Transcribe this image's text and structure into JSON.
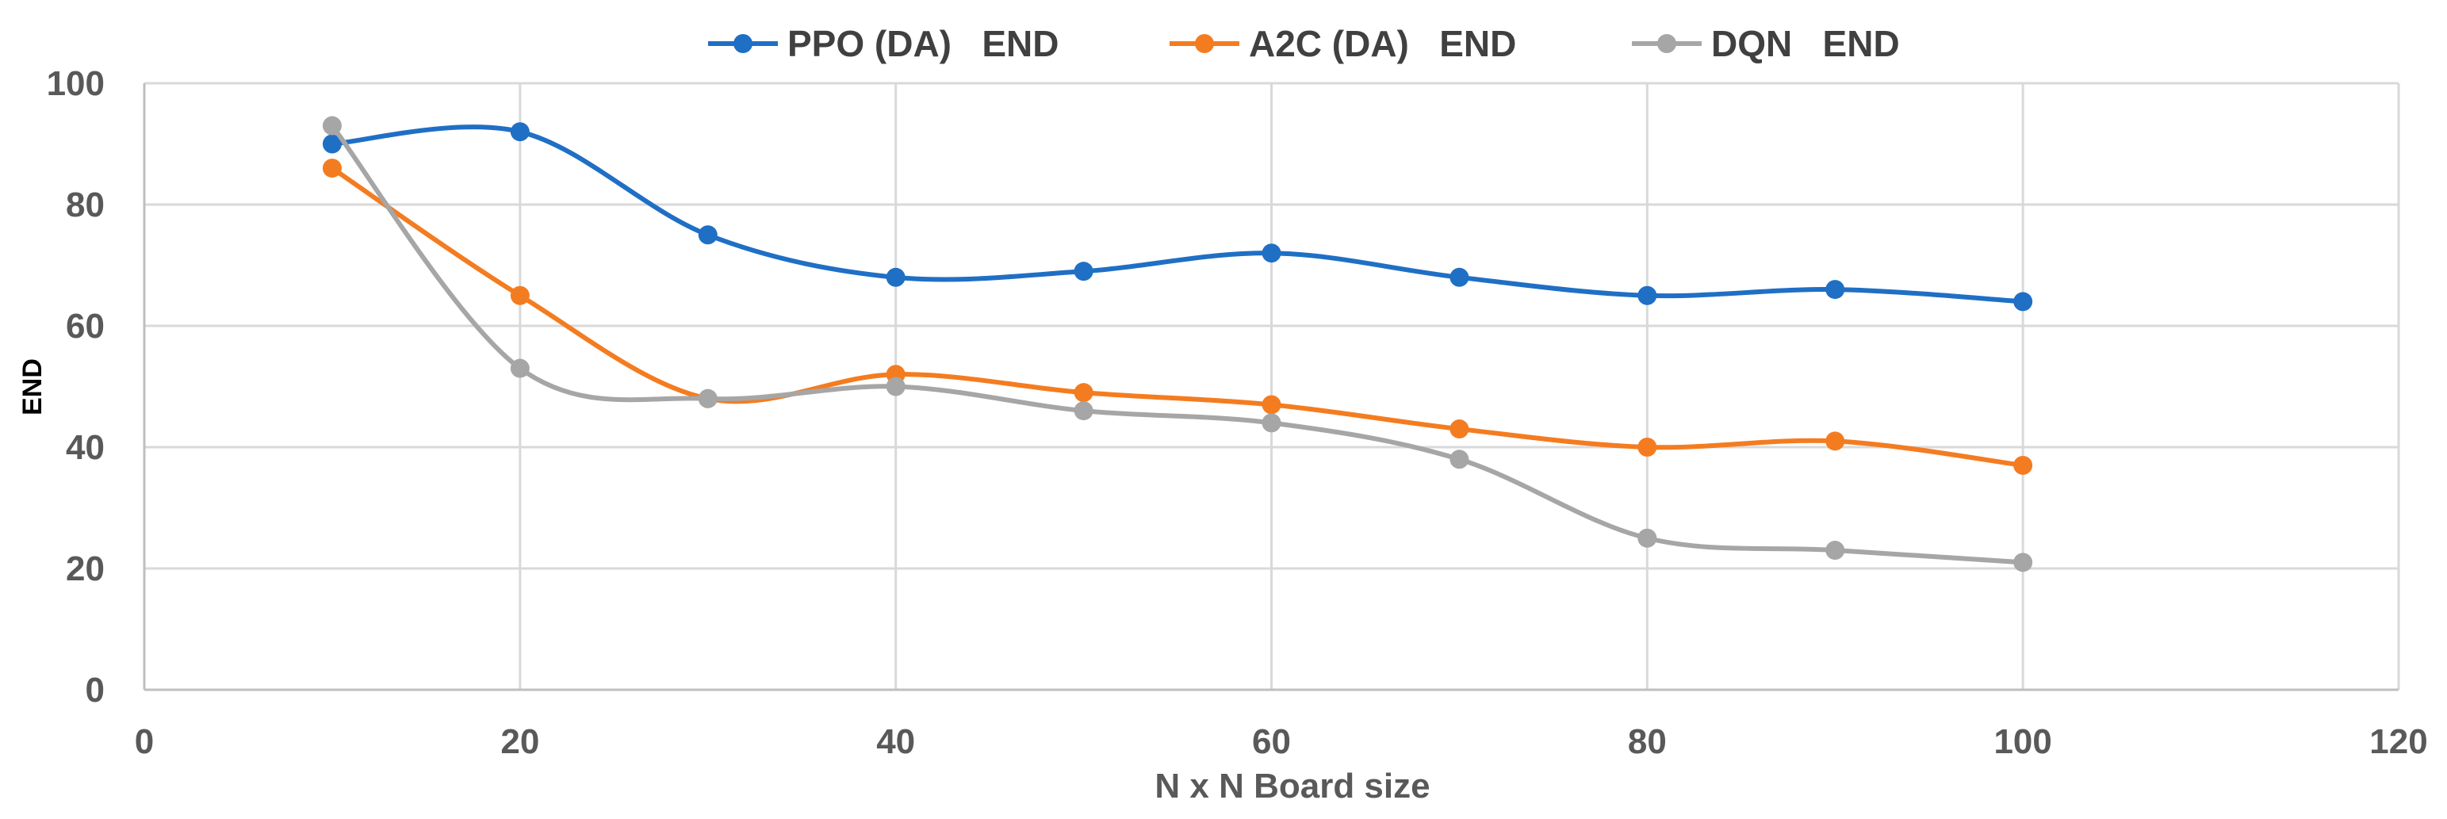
{
  "chart_data": {
    "type": "line",
    "title": "",
    "xlabel": "N x N Board size",
    "ylabel": "END",
    "xlim": [
      0,
      120
    ],
    "ylim": [
      0,
      100
    ],
    "xticks": [
      0,
      20,
      40,
      60,
      80,
      100,
      120
    ],
    "yticks": [
      0,
      20,
      40,
      60,
      80,
      100
    ],
    "grid": true,
    "legend_position": "top",
    "x": [
      10,
      20,
      30,
      40,
      50,
      60,
      70,
      80,
      90,
      100
    ],
    "series": [
      {
        "name": "PPO (DA)   END",
        "color": "#1f6fc5",
        "values": [
          90,
          92,
          75,
          68,
          69,
          72,
          68,
          65,
          66,
          64
        ]
      },
      {
        "name": "A2C (DA)   END",
        "color": "#f47c20",
        "values": [
          86,
          65,
          48,
          52,
          49,
          47,
          43,
          40,
          41,
          37
        ]
      },
      {
        "name": "DQN   END",
        "color": "#a6a6a6",
        "values": [
          93,
          53,
          48,
          50,
          46,
          44,
          38,
          25,
          23,
          21
        ]
      }
    ]
  }
}
